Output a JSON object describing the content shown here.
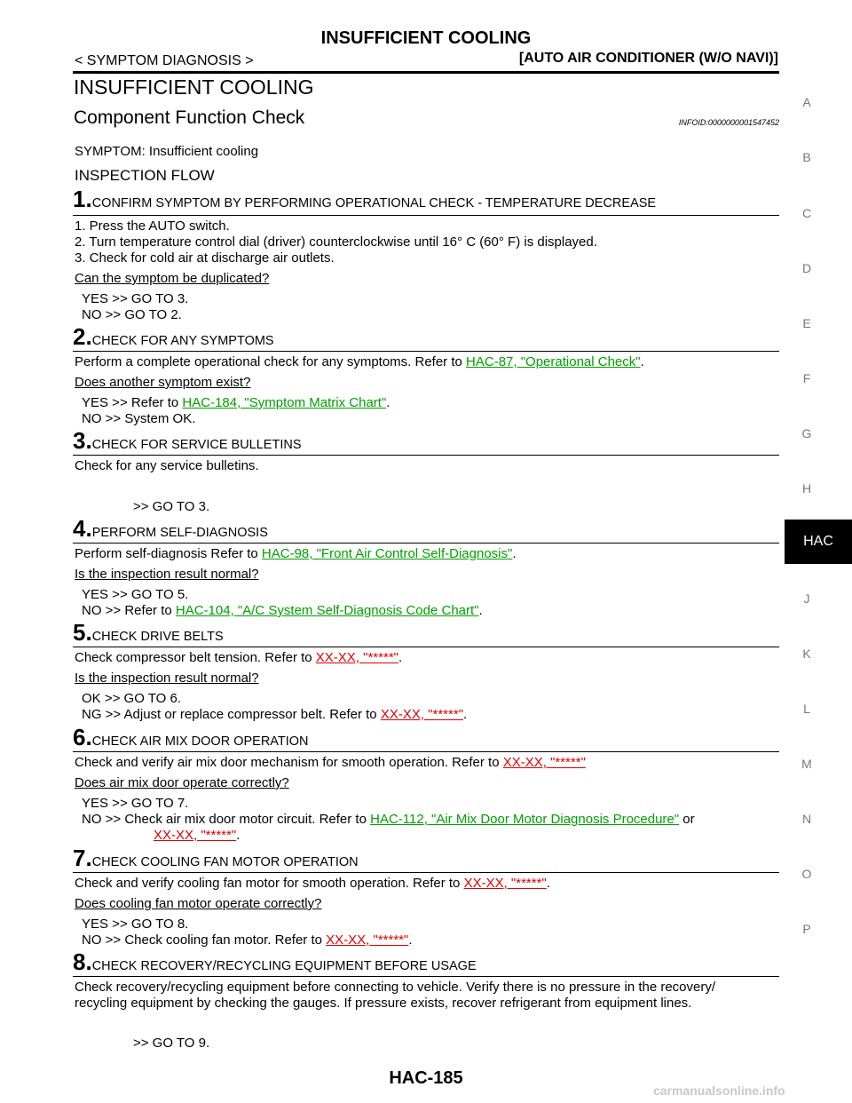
{
  "header": {
    "title": "INSUFFICIENT COOLING",
    "breadcrumb": "< SYMPTOM DIAGNOSIS >",
    "section": "[AUTO AIR CONDITIONER (W/O NAVI)]"
  },
  "page_title": "INSUFFICIENT COOLING",
  "subtitle": "Component Function Check",
  "infoid": "INFOID:0000000001547452",
  "symptom": "SYMPTOM: Insufficient cooling",
  "inspection_flow": "INSPECTION FLOW",
  "steps": [
    {
      "num": "1.",
      "title": "CONFIRM SYMPTOM BY PERFORMING OPERATIONAL CHECK - TEMPERATURE DECREASE",
      "lines": [
        "1.   Press the AUTO switch.",
        "2.   Turn temperature control dial (driver) counterclockwise until 16° C (60° F) is displayed.",
        "3.   Check for cold air at discharge air outlets."
      ],
      "question": "Can the symptom be duplicated?",
      "answers": [
        "YES    >> GO TO 3.",
        "NO     >> GO TO 2."
      ]
    },
    {
      "num": "2.",
      "title": "CHECK FOR ANY SYMPTOMS",
      "text": "Perform a complete operational check for any symptoms. Refer to ",
      "link": "HAC-87, \"Operational Check\"",
      "after": ".",
      "question": "Does another symptom exist?",
      "yes_text": "YES    >> Refer to ",
      "yes_link": "HAC-184, \"Symptom  Matrix  Chart\"",
      "yes_after": ".",
      "no": "NO     >> System OK."
    },
    {
      "num": "3.",
      "title": "CHECK FOR SERVICE BULLETINS",
      "text": "Check for any service bulletins.",
      "goto": ">> GO TO 3."
    },
    {
      "num": "4.",
      "title": "PERFORM SELF-DIAGNOSIS",
      "text": "Perform self-diagnosis Refer to ",
      "link": "HAC-98, \"Front Air Control Self-Diagnosis\"",
      "after": ".",
      "question": "Is the inspection result normal?",
      "yes": "YES    >> GO TO 5.",
      "no_text": "NO     >> Refer to ",
      "no_link": "HAC-104, \"A/C System Self-Diagnosis Code Chart\"",
      "no_after": "."
    },
    {
      "num": "5.",
      "title": "CHECK DRIVE BELTS",
      "text": "Check compressor belt tension. Refer to ",
      "link": "XX-XX, \"*****\"",
      "after": ".",
      "question": "Is the inspection result normal?",
      "ok": "OK     >> GO TO 6.",
      "ng_text": "NG     >> Adjust or replace compressor belt. Refer to ",
      "ng_link": "XX-XX, \"*****\"",
      "ng_after": "."
    },
    {
      "num": "6.",
      "title": "CHECK AIR MIX DOOR OPERATION",
      "text": "Check and verify air mix door mechanism for smooth operation. Refer to ",
      "link": "XX-XX, \"*****\"",
      "question": "Does air mix door operate correctly?",
      "yes": "YES    >> GO TO 7.",
      "no_text": "NO     >> Check air mix door motor circuit. Refer to ",
      "no_link": "HAC-112, \"Air Mix Door Motor Diagnosis Procedure\"",
      "no_after": " or",
      "no_link2": "XX-XX, \"*****\"",
      "no_after2": "."
    },
    {
      "num": "7.",
      "title": "CHECK COOLING FAN MOTOR OPERATION",
      "text": "Check and verify cooling fan motor for smooth operation. Refer to ",
      "link": "XX-XX, \"*****\"",
      "after": ".",
      "question": "Does cooling fan motor operate correctly?",
      "yes": "YES    >> GO TO 8.",
      "no_text": "NO     >> Check cooling fan motor. Refer to ",
      "no_link": "XX-XX, \"*****\"",
      "no_after": "."
    },
    {
      "num": "8.",
      "title": "CHECK RECOVERY/RECYCLING EQUIPMENT BEFORE USAGE",
      "line1": "Check recovery/recycling equipment before connecting to vehicle. Verify there is no pressure in the recovery/",
      "line2": "recycling equipment by checking the gauges. If pressure exists, recover refrigerant from equipment lines.",
      "goto": ">> GO TO 9."
    }
  ],
  "side_index": [
    "A",
    "B",
    "C",
    "D",
    "E",
    "F",
    "G",
    "H",
    "HAC",
    "J",
    "K",
    "L",
    "M",
    "N",
    "O",
    "P"
  ],
  "footer": "HAC-185",
  "watermark": "carmanualsonline.info",
  "colors": {
    "link_green": "#00a000",
    "link_red": "#e00000",
    "tab_bg": "#000000"
  }
}
